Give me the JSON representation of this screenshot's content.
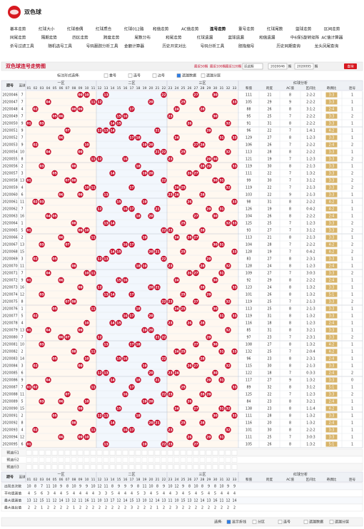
{
  "header": {
    "title": "双色球"
  },
  "nav": {
    "rows": [
      [
        "基本走势",
        "红球大小",
        "红球奇偶",
        "红球质合",
        "红球012路",
        "和值走势",
        "AC值走势",
        "连号走势",
        "重号走势",
        "红球尾数",
        "蓝球走势",
        "区间走势"
      ],
      [
        "同尾走势",
        "隔期走势",
        "四区走势",
        "跨度走势",
        "尾数分布",
        "和尾走势",
        "红球遗漏",
        "蓝球遗漏",
        "和值遗漏",
        "中6保5旋转矩阵",
        "AC值计算器"
      ],
      [
        "杀号过滤工具",
        "随机选号工具",
        "号码跟踪分析工具",
        "金额计算器",
        "历史开奖对比",
        "号码分析工具",
        "胆拖缩号",
        "历史同期查询",
        "龙头凤尾查询"
      ]
    ],
    "active": [
      0,
      7
    ]
  },
  "toolbar": {
    "title": "双色球连号走势图",
    "ranges": [
      "最近50期",
      "最近100期",
      "最近120期"
    ],
    "select": "近此期",
    "from": "2020046",
    "to": "2020095",
    "unit": "期",
    "query": "查询"
  },
  "marker": {
    "label": "标注形式选择:",
    "options": [
      "重号",
      "连号",
      "边号",
      "遗漏数据",
      "遗漏分层"
    ],
    "checked": [
      false,
      false,
      false,
      true,
      false
    ]
  },
  "table": {
    "issue_header": "期号",
    "blue_header": "蓝球",
    "zones": [
      "一区",
      "二区",
      "三区"
    ],
    "numbers": [
      "01",
      "02",
      "03",
      "04",
      "05",
      "06",
      "07",
      "08",
      "09",
      "10",
      "11",
      "12",
      "13",
      "14",
      "15",
      "16",
      "17",
      "18",
      "19",
      "20",
      "21",
      "22",
      "23",
      "24",
      "25",
      "26",
      "27",
      "28",
      "29",
      "30",
      "31",
      "32",
      "33"
    ],
    "analysis_title": "红球分析",
    "analysis_headers": [
      "和值",
      "跨度",
      "AC值",
      "区间比",
      "奇偶比",
      "连号"
    ],
    "rows": [
      {
        "issue": "2020046",
        "blue": 7,
        "reds": [
          "09",
          "10",
          "13",
          "22",
          "27",
          "30"
        ],
        "sum": 111,
        "span": 21,
        "ac": 8,
        "zone": "2:2:2",
        "oe": "3:3",
        "consec": 1
      },
      {
        "issue": "2020047",
        "blue": 7,
        "reds": [
          "04",
          "11",
          "12",
          "20",
          "25",
          "33"
        ],
        "sum": 105,
        "span": 29,
        "ac": 9,
        "zone": "2:2:2",
        "oe": "3:3",
        "consec": 1
      },
      {
        "issue": "2020048",
        "blue": 4,
        "reds": [
          "02",
          "08",
          "09",
          "17",
          "24",
          "28"
        ],
        "sum": 88,
        "span": 26,
        "ac": 8,
        "zone": "3:1:2",
        "oe": "2:4",
        "consec": 1
      },
      {
        "issue": "2020049",
        "blue": 7,
        "reds": [
          "05",
          "06",
          "15",
          "16",
          "23",
          "30"
        ],
        "sum": 95,
        "span": 25,
        "ac": 7,
        "zone": "2:2:2",
        "oe": "3:3",
        "consec": 2
      },
      {
        "issue": "2020050",
        "blue": 9,
        "reds": [
          "01",
          "03",
          "14",
          "15",
          "26",
          "32"
        ],
        "sum": 91,
        "span": 31,
        "ac": 8,
        "zone": "2:2:2",
        "oe": "3:3",
        "consec": 1
      },
      {
        "issue": "2020051",
        "blue": 9,
        "reds": [
          "07",
          "12",
          "13",
          "14",
          "21",
          "29"
        ],
        "sum": 96,
        "span": 22,
        "ac": 7,
        "zone": "1:4:1",
        "oe": "4:2",
        "consec": 1
      },
      {
        "issue": "2020052",
        "blue": 7,
        "reds": [
          "06",
          "17",
          "18",
          "24",
          "31",
          "33"
        ],
        "sum": 129,
        "span": 27,
        "ac": 8,
        "zone": "1:2:3",
        "oe": "3:3",
        "consec": 1
      },
      {
        "issue": "2020053",
        "blue": 9,
        "reds": [
          "02",
          "10",
          "19",
          "20",
          "27",
          "28"
        ],
        "sum": 106,
        "span": 26,
        "ac": 7,
        "zone": "2:2:2",
        "oe": "2:4",
        "consec": 2
      },
      {
        "issue": "2020054",
        "blue": 10,
        "reds": [
          "04",
          "09",
          "21",
          "22",
          "25",
          "32"
        ],
        "sum": 113,
        "span": 28,
        "ac": 8,
        "zone": "2:2:2",
        "oe": "3:3",
        "consec": 1
      },
      {
        "issue": "2020055",
        "blue": 8,
        "reds": [
          "11",
          "12",
          "16",
          "23",
          "29",
          "30"
        ],
        "sum": 121,
        "span": 19,
        "ac": 7,
        "zone": "1:2:3",
        "oe": "3:3",
        "consec": 2
      },
      {
        "issue": "2020056",
        "blue": 2,
        "reds": [
          "03",
          "08",
          "18",
          "28",
          "29",
          "33"
        ],
        "sum": 119,
        "span": 30,
        "ac": 8,
        "zone": "2:1:3",
        "oe": "3:3",
        "consec": 1
      },
      {
        "issue": "2020057",
        "blue": 3,
        "reds": [
          "05",
          "14",
          "19",
          "20",
          "26",
          "27"
        ],
        "sum": 111,
        "span": 22,
        "ac": 7,
        "zone": "1:3:2",
        "oe": "3:3",
        "consec": 2
      },
      {
        "issue": "2020058",
        "blue": 13,
        "reds": [
          "01",
          "07",
          "08",
          "22",
          "30",
          "31"
        ],
        "sum": 99,
        "span": 30,
        "ac": 7,
        "zone": "3:1:2",
        "oe": "3:3",
        "consec": 2
      },
      {
        "issue": "2020059",
        "blue": 4,
        "reds": [
          "10",
          "11",
          "17",
          "24",
          "25",
          "32"
        ],
        "sum": 119,
        "span": 22,
        "ac": 7,
        "zone": "2:1:3",
        "oe": "3:3",
        "consec": 2
      },
      {
        "issue": "2020060",
        "blue": 6,
        "reds": [
          "06",
          "09",
          "13",
          "23",
          "24",
          "28"
        ],
        "sum": 103,
        "span": 22,
        "ac": 9,
        "zone": "2:1:3",
        "oe": "3:3",
        "consec": 1
      },
      {
        "issue": "2020061",
        "blue": 11,
        "reds": [
          "02",
          "03",
          "15",
          "19",
          "26",
          "33"
        ],
        "sum": 98,
        "span": 31,
        "ac": 8,
        "zone": "2:2:2",
        "oe": "4:2",
        "consec": 1
      },
      {
        "issue": "2020062",
        "blue": 7,
        "reds": [
          "12",
          "16",
          "17",
          "21",
          "29",
          "31"
        ],
        "sum": 126,
        "span": 19,
        "ac": 8,
        "zone": "0:4:2",
        "oe": "4:2",
        "consec": 1
      },
      {
        "issue": "2020063",
        "blue": 16,
        "reds": [
          "04",
          "05",
          "18",
          "20",
          "27",
          "30"
        ],
        "sum": 104,
        "span": 26,
        "ac": 8,
        "zone": "2:2:2",
        "oe": "2:4",
        "consec": 1
      },
      {
        "issue": "2020064",
        "blue": 1,
        "reds": [
          "08",
          "13",
          "14",
          "25",
          "32",
          "33"
        ],
        "sum": 125,
        "span": 25,
        "ac": 7,
        "zone": "1:2:3",
        "oe": "3:3",
        "consec": 2
      },
      {
        "issue": "2020065",
        "blue": 5,
        "reds": [
          "01",
          "09",
          "10",
          "22",
          "23",
          "28"
        ],
        "sum": 93,
        "span": 27,
        "ac": 7,
        "zone": "3:1:2",
        "oe": "3:3",
        "consec": 2
      },
      {
        "issue": "2020066",
        "blue": 2,
        "reds": [
          "06",
          "11",
          "19",
          "24",
          "26",
          "27"
        ],
        "sum": 113,
        "span": 21,
        "ac": 8,
        "zone": "2:1:3",
        "oe": "3:3",
        "consec": 1
      },
      {
        "issue": "2020067",
        "blue": 13,
        "reds": [
          "03",
          "07",
          "16",
          "17",
          "30",
          "31"
        ],
        "sum": 104,
        "span": 28,
        "ac": 7,
        "zone": "2:2:2",
        "oe": "4:2",
        "consec": 2
      },
      {
        "issue": "2020068",
        "blue": 15,
        "reds": [
          "14",
          "15",
          "20",
          "21",
          "25",
          "33"
        ],
        "sum": 128,
        "span": 19,
        "ac": 7,
        "zone": "0:4:2",
        "oe": "4:2",
        "consec": 2
      },
      {
        "issue": "2020069",
        "blue": 3,
        "reds": [
          "02",
          "05",
          "12",
          "13",
          "22",
          "29"
        ],
        "sum": 83,
        "span": 27,
        "ac": 8,
        "zone": "2:3:1",
        "oe": "3:3",
        "consec": 1
      },
      {
        "issue": "2020070",
        "blue": 11,
        "reds": [
          "08",
          "18",
          "19",
          "23",
          "28",
          "32"
        ],
        "sum": 128,
        "span": 24,
        "ac": 8,
        "zone": "1:2:3",
        "oe": "2:4",
        "consec": 1
      },
      {
        "issue": "2020071",
        "blue": 7,
        "reds": [
          "04",
          "10",
          "11",
          "26",
          "27",
          "31"
        ],
        "sum": 109,
        "span": 27,
        "ac": 7,
        "zone": "3:0:3",
        "oe": "3:3",
        "consec": 2
      },
      {
        "issue": "2020072",
        "blue": 9,
        "reds": [
          "01",
          "06",
          "15",
          "16",
          "24",
          "30"
        ],
        "sum": 92,
        "span": 29,
        "ac": 8,
        "zone": "2:2:2",
        "oe": "2:4",
        "consec": 1
      },
      {
        "issue": "2020073",
        "blue": 16,
        "reds": [
          "09",
          "12",
          "20",
          "21",
          "28",
          "33"
        ],
        "sum": 123,
        "span": 24,
        "ac": 8,
        "zone": "1:3:2",
        "oe": "3:3",
        "consec": 1
      },
      {
        "issue": "2020074",
        "blue": 12,
        "reds": [
          "03",
          "13",
          "14",
          "17",
          "25",
          "29"
        ],
        "sum": 101,
        "span": 26,
        "ac": 8,
        "zone": "1:3:2",
        "oe": "5:1",
        "consec": 1
      },
      {
        "issue": "2020075",
        "blue": 8,
        "reds": [
          "07",
          "08",
          "22",
          "23",
          "27",
          "32"
        ],
        "sum": 119,
        "span": 25,
        "ac": 7,
        "zone": "2:1:3",
        "oe": "3:3",
        "consec": 2
      },
      {
        "issue": "2020076",
        "blue": 1,
        "reds": [
          "05",
          "11",
          "18",
          "24",
          "25",
          "30"
        ],
        "sum": 113,
        "span": 25,
        "ac": 8,
        "zone": "2:1:3",
        "oe": "3:3",
        "consec": 1
      },
      {
        "issue": "2020077",
        "blue": 5,
        "reds": [
          "02",
          "16",
          "17",
          "20",
          "31",
          "33"
        ],
        "sum": 119,
        "span": 31,
        "ac": 8,
        "zone": "1:3:2",
        "oe": "3:3",
        "consec": 1
      },
      {
        "issue": "2020078",
        "blue": 4,
        "reds": [
          "10",
          "14",
          "15",
          "23",
          "26",
          "28"
        ],
        "sum": 116,
        "span": 18,
        "ac": 8,
        "zone": "1:2:3",
        "oe": "2:4",
        "consec": 1
      },
      {
        "issue": "2020079",
        "blue": 13,
        "reds": [
          "01",
          "04",
          "09",
          "19",
          "20",
          "32"
        ],
        "sum": 85,
        "span": 31,
        "ac": 8,
        "zone": "3:2:1",
        "oe": "3:3",
        "consec": 1
      },
      {
        "issue": "2020080",
        "blue": 7,
        "reds": [
          "06",
          "07",
          "12",
          "21",
          "22",
          "29"
        ],
        "sum": 97,
        "span": 23,
        "ac": 7,
        "zone": "2:3:1",
        "oe": "3:3",
        "consec": 2
      },
      {
        "issue": "2020081",
        "blue": 10,
        "reds": [
          "03",
          "13",
          "17",
          "18",
          "27",
          "30"
        ],
        "sum": 108,
        "span": 27,
        "ac": 8,
        "zone": "1:3:2",
        "oe": "4:2",
        "consec": 1
      },
      {
        "issue": "2020082",
        "blue": 2,
        "reds": [
          "08",
          "11",
          "24",
          "25",
          "31",
          "33"
        ],
        "sum": 132,
        "span": 25,
        "ac": 7,
        "zone": "2:0:4",
        "oe": "4:2",
        "consec": 1
      },
      {
        "issue": "2020083",
        "blue": 14,
        "reds": [
          "05",
          "10",
          "15",
          "16",
          "22",
          "28"
        ],
        "sum": 96,
        "span": 23,
        "ac": 8,
        "zone": "2:3:1",
        "oe": "2:4",
        "consec": 1
      },
      {
        "issue": "2020084",
        "blue": 3,
        "reds": [
          "02",
          "09",
          "19",
          "26",
          "27",
          "32"
        ],
        "sum": 115,
        "span": 30,
        "ac": 8,
        "zone": "2:1:3",
        "oe": "3:3",
        "consec": 1
      },
      {
        "issue": "2020085",
        "blue": 6,
        "reds": [
          "12",
          "13",
          "20",
          "23",
          "24",
          "30"
        ],
        "sum": 122,
        "span": 18,
        "ac": 7,
        "zone": "0:3:3",
        "oe": "2:4",
        "consec": 2
      },
      {
        "issue": "2020086",
        "blue": 9,
        "reds": [
          "04",
          "14",
          "18",
          "21",
          "29",
          "31"
        ],
        "sum": 117,
        "span": 27,
        "ac": 9,
        "zone": "1:3:2",
        "oe": "3:3",
        "consec": 0
      },
      {
        "issue": "2020087",
        "blue": 7,
        "reds": [
          "01",
          "02",
          "11",
          "17",
          "25",
          "33"
        ],
        "sum": 89,
        "span": 32,
        "ac": 8,
        "zone": "3:1:2",
        "oe": "5:1",
        "consec": 1
      },
      {
        "issue": "2020088",
        "blue": 11,
        "reds": [
          "07",
          "16",
          "22",
          "23",
          "28",
          "29"
        ],
        "sum": 125,
        "span": 22,
        "ac": 7,
        "zone": "1:2:3",
        "oe": "3:3",
        "consec": 2
      },
      {
        "issue": "2020089",
        "blue": 5,
        "reds": [
          "03",
          "06",
          "10",
          "19",
          "20",
          "26"
        ],
        "sum": 84,
        "span": 23,
        "ac": 8,
        "zone": "3:2:1",
        "oe": "2:4",
        "consec": 1
      },
      {
        "issue": "2020090",
        "blue": 15,
        "reds": [
          "09",
          "15",
          "24",
          "27",
          "31",
          "32"
        ],
        "sum": 138,
        "span": 23,
        "ac": 8,
        "zone": "1:1:4",
        "oe": "4:2",
        "consec": 1
      },
      {
        "issue": "2020091",
        "blue": 2,
        "reds": [
          "05",
          "12",
          "13",
          "18",
          "30",
          "33"
        ],
        "sum": 111,
        "span": 28,
        "ac": 8,
        "zone": "1:3:2",
        "oe": "3:3",
        "consec": 1
      },
      {
        "issue": "2020092",
        "blue": 8,
        "reds": [
          "08",
          "14",
          "20",
          "21",
          "25",
          "28"
        ],
        "sum": 116,
        "span": 20,
        "ac": 8,
        "zone": "1:3:2",
        "oe": "2:4",
        "consec": 1
      },
      {
        "issue": "2020093",
        "blue": 4,
        "reds": [
          "02",
          "11",
          "16",
          "17",
          "23",
          "32"
        ],
        "sum": 101,
        "span": 30,
        "ac": 8,
        "zone": "2:2:2",
        "oe": "3:3",
        "consec": 1
      },
      {
        "issue": "2020094",
        "blue": 12,
        "reds": [
          "06",
          "09",
          "10",
          "26",
          "29",
          "31"
        ],
        "sum": 111,
        "span": 25,
        "ac": 7,
        "zone": "3:0:3",
        "oe": "3:3",
        "consec": 1
      },
      {
        "issue": "2020095",
        "blue": 6,
        "reds": [
          "01",
          "13",
          "19",
          "22",
          "23",
          "27"
        ],
        "sum": 105,
        "span": 26,
        "ac": 8,
        "zone": "1:3:2",
        "oe": "5:1",
        "consec": 1
      }
    ],
    "preselect": [
      "预选行1",
      "预选行2",
      "预选行3"
    ],
    "stats": [
      {
        "label": "出现总次数",
        "values": [
          10,
          8,
          7,
          11,
          10,
          9,
          8,
          10,
          9,
          9,
          10,
          12,
          11,
          8,
          9,
          9,
          9,
          8,
          11,
          10,
          8,
          9,
          10,
          12,
          9,
          8,
          10,
          8,
          9,
          8,
          10,
          9,
          9
        ]
      },
      {
        "label": "平均遗漏值",
        "values": [
          4,
          5,
          6,
          3,
          4,
          4,
          5,
          4,
          4,
          4,
          4,
          3,
          3,
          5,
          4,
          4,
          4,
          5,
          3,
          4,
          5,
          4,
          4,
          3,
          4,
          5,
          4,
          5,
          4,
          5,
          4,
          4,
          4
        ]
      },
      {
        "label": "最大遗漏值",
        "values": [
          13,
          12,
          15,
          11,
          12,
          14,
          13,
          12,
          11,
          16,
          11,
          10,
          13,
          17,
          12,
          14,
          15,
          13,
          10,
          12,
          14,
          13,
          11,
          10,
          15,
          13,
          12,
          14,
          13,
          16,
          11,
          12,
          14
        ]
      },
      {
        "label": "最大连出值",
        "values": [
          2,
          2,
          1,
          2,
          2,
          2,
          2,
          1,
          2,
          2,
          2,
          2,
          2,
          2,
          2,
          2,
          3,
          2,
          2,
          2,
          1,
          2,
          2,
          3,
          2,
          2,
          2,
          2,
          2,
          2,
          2,
          2,
          2
        ]
      }
    ]
  },
  "footer": {
    "label": "选择:",
    "options": [
      "显示折线",
      "分区",
      "连号",
      "遗漏数据",
      "遗漏分层"
    ],
    "checked": [
      true,
      false,
      false,
      false,
      false
    ]
  }
}
